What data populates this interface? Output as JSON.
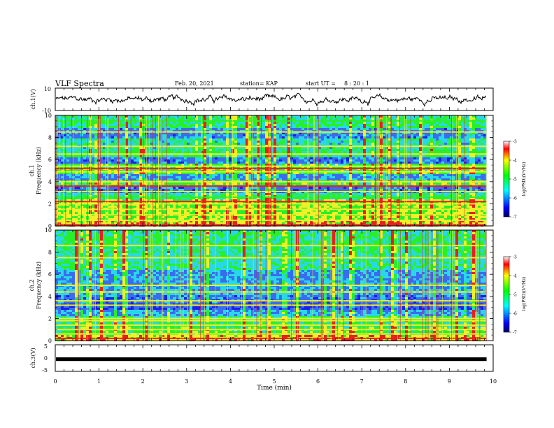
{
  "header": {
    "title": "VLF Spectra",
    "date": "Feb. 20, 2021",
    "station": "station= KAP",
    "start_label": "start  UT =",
    "start_time": "8 : 20 : 1"
  },
  "colors": {
    "deep_blue": "#1e1ee8",
    "blue": "#3a6cf0",
    "cyan": "#28d8e8",
    "green": "#28f028",
    "yellow": "#f0f028",
    "red": "#e82020",
    "axis": "#000000"
  },
  "chart_data": [
    {
      "id": "ch1-waveform",
      "type": "line",
      "ylabel": "ch.1(V)",
      "ylim": [
        -10,
        10
      ],
      "yticks": [
        "10",
        "-10"
      ],
      "x_range_min": [
        0,
        9.85
      ],
      "description_of_signal": "noisy waveform oscillating around 0 V"
    },
    {
      "id": "ch1-spectrogram",
      "type": "heatmap",
      "xlabel": "",
      "ylabel": "ch.1 Frequency (kHz)",
      "ylabel_lines": [
        "ch.1",
        "Frequency  (kHz)"
      ],
      "ylim": [
        0,
        10
      ],
      "yticks": [
        "0",
        "2",
        "4",
        "6",
        "8",
        "10"
      ],
      "x_range_min": [
        0,
        9.85
      ],
      "colorbar": {
        "label": "log(PSD)(V²/Hz)",
        "range": [
          -7,
          -3
        ],
        "ticks": [
          "-3",
          "-4",
          "-5",
          "-6",
          "-7"
        ]
      },
      "bands_khz": [
        {
          "f": 0.1,
          "level": "red"
        },
        {
          "f": 0.5,
          "level": "yellow"
        },
        {
          "f": 1.0,
          "level": "yellow"
        },
        {
          "f": 1.5,
          "level": "yellow"
        },
        {
          "f": 2.0,
          "level": "yellow"
        },
        {
          "f": 2.2,
          "level": "red"
        },
        {
          "f": 2.6,
          "level": "green"
        },
        {
          "f": 3.1,
          "level": "yellow"
        },
        {
          "f": 3.6,
          "level": "red"
        },
        {
          "f": 4.0,
          "level": "yellow"
        },
        {
          "f": 4.9,
          "level": "yellow"
        },
        {
          "f": 5.2,
          "level": "red"
        },
        {
          "f": 5.4,
          "level": "yellow"
        },
        {
          "f": 6.5,
          "level": "yellow"
        },
        {
          "f": 7.2,
          "level": "yellow"
        },
        {
          "f": 8.5,
          "level": "yellow"
        },
        {
          "f": 9.5,
          "level": "green"
        }
      ]
    },
    {
      "id": "ch2-spectrogram",
      "type": "heatmap",
      "xlabel": "",
      "ylabel": "ch.2 Frequency (kHz)",
      "ylabel_lines": [
        "ch.2",
        "Frequency  (kHz)"
      ],
      "ylim": [
        0,
        10
      ],
      "yticks": [
        "0",
        "2",
        "4",
        "6",
        "8",
        "10"
      ],
      "x_range_min": [
        0,
        9.85
      ],
      "colorbar": {
        "label": "log(PSD)(V²/Hz)",
        "range": [
          -7,
          -3
        ],
        "ticks": [
          "-3",
          "-4",
          "-5",
          "-6",
          "-7"
        ]
      },
      "bands_khz": [
        {
          "f": 0.2,
          "level": "red"
        },
        {
          "f": 0.6,
          "level": "yellow"
        },
        {
          "f": 1.0,
          "level": "yellow"
        },
        {
          "f": 1.4,
          "level": "yellow"
        },
        {
          "f": 1.8,
          "level": "yellow"
        },
        {
          "f": 2.0,
          "level": "yellow"
        },
        {
          "f": 3.2,
          "level": "yellow"
        },
        {
          "f": 3.6,
          "level": "yellow"
        },
        {
          "f": 4.4,
          "level": "yellow"
        },
        {
          "f": 5.0,
          "level": "yellow"
        },
        {
          "f": 7.5,
          "level": "yellow"
        },
        {
          "f": 8.6,
          "level": "yellow"
        }
      ]
    },
    {
      "id": "ch3-waveform",
      "type": "line",
      "ylabel": "ch.3(V)",
      "ylim": [
        -5,
        5
      ],
      "yticks": [
        "5",
        "0",
        "-5"
      ],
      "x_range_min": [
        0,
        9.85
      ],
      "description_of_signal": "saturated thick band around -0.5 V"
    }
  ],
  "xaxis": {
    "label": "Time  (min)",
    "range": [
      0,
      10
    ],
    "ticks": [
      "0",
      "1",
      "2",
      "3",
      "4",
      "5",
      "6",
      "7",
      "8",
      "9",
      "10"
    ]
  }
}
